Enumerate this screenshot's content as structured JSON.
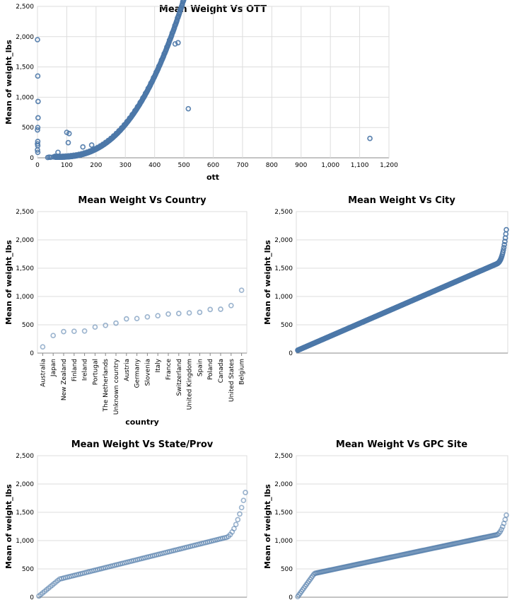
{
  "colors": {
    "point": "#4c78a8"
  },
  "chart_data": [
    {
      "type": "scatter",
      "title": "Mean Weight Vs OTT",
      "xlabel": "ott",
      "ylabel": "Mean of weight_lbs",
      "xlim": [
        0,
        1200
      ],
      "ylim": [
        0,
        2500
      ],
      "xticks": [
        "0",
        "100",
        "200",
        "300",
        "400",
        "500",
        "600",
        "700",
        "800",
        "900",
        "1,000",
        "1,100",
        "1,200"
      ],
      "yticks": [
        "0",
        "500",
        "1,000",
        "1,500",
        "2,000",
        "2,500"
      ],
      "grid": true,
      "outliers": [
        {
          "x": 0,
          "y": 1950
        },
        {
          "x": 1,
          "y": 1350
        },
        {
          "x": 2,
          "y": 930
        },
        {
          "x": 2,
          "y": 660
        },
        {
          "x": 1,
          "y": 500
        },
        {
          "x": 0,
          "y": 460
        },
        {
          "x": 1,
          "y": 270
        },
        {
          "x": 0,
          "y": 230
        },
        {
          "x": 1,
          "y": 200
        },
        {
          "x": 0,
          "y": 130
        },
        {
          "x": 1,
          "y": 90
        },
        {
          "x": 35,
          "y": 5
        },
        {
          "x": 40,
          "y": 10
        },
        {
          "x": 45,
          "y": 8
        },
        {
          "x": 55,
          "y": 15
        },
        {
          "x": 60,
          "y": 20
        },
        {
          "x": 70,
          "y": 90
        },
        {
          "x": 100,
          "y": 420
        },
        {
          "x": 105,
          "y": 250
        },
        {
          "x": 108,
          "y": 400
        },
        {
          "x": 155,
          "y": 180
        },
        {
          "x": 185,
          "y": 210
        },
        {
          "x": 470,
          "y": 1880
        },
        {
          "x": 480,
          "y": 1900
        },
        {
          "x": 515,
          "y": 810
        },
        {
          "x": 1135,
          "y": 320
        }
      ],
      "trend": {
        "x_start": 60,
        "x_end": 500,
        "y_start": 10,
        "y_end": 2620
      }
    },
    {
      "type": "scatter",
      "title": "Mean Weight Vs Country",
      "xlabel": "country",
      "ylabel": "Mean of weight_lbs",
      "ylim": [
        0,
        2500
      ],
      "yticks": [
        "0",
        "500",
        "1,000",
        "1,500",
        "2,000",
        "2,500"
      ],
      "grid": true,
      "categories": [
        "Australia",
        "Japan",
        "New Zealand",
        "Finland",
        "Ireland",
        "Portugal",
        "The Netherlands",
        "Unknown country",
        "Austria",
        "Germany",
        "Slovenia",
        "Italy",
        "France",
        "Switzerland",
        "United Kingdom",
        "Spain",
        "Poland",
        "Canada",
        "United States",
        "Belgium"
      ],
      "values": [
        110,
        310,
        380,
        385,
        390,
        460,
        490,
        530,
        605,
        610,
        640,
        660,
        690,
        700,
        710,
        720,
        770,
        775,
        840,
        1110
      ]
    },
    {
      "type": "scatter",
      "title": "Mean Weight Vs City",
      "xlabel": "",
      "ylabel": "Mean of weight_lbs",
      "ylim": [
        0,
        2500
      ],
      "yticks": [
        "0",
        "500",
        "1,000",
        "1,500",
        "2,000",
        "2,500"
      ],
      "grid": true,
      "count": 420,
      "range": [
        50,
        2180
      ]
    },
    {
      "type": "scatter",
      "title": "Mean Weight Vs State/Prov",
      "xlabel": "",
      "ylabel": "Mean of weight_lbs",
      "ylim": [
        0,
        2500
      ],
      "yticks": [
        "0",
        "500",
        "1,000",
        "1,500",
        "2,000",
        "2,500"
      ],
      "grid": true,
      "count": 110,
      "range": [
        20,
        1850
      ]
    },
    {
      "type": "scatter",
      "title": "Mean Weight Vs GPC Site",
      "xlabel": "",
      "ylabel": "Mean of weight_lbs",
      "ylim": [
        0,
        2500
      ],
      "yticks": [
        "0",
        "500",
        "1,000",
        "1,500",
        "2,000",
        "2,500"
      ],
      "grid": true,
      "count": 170,
      "range": [
        10,
        1450
      ]
    }
  ]
}
